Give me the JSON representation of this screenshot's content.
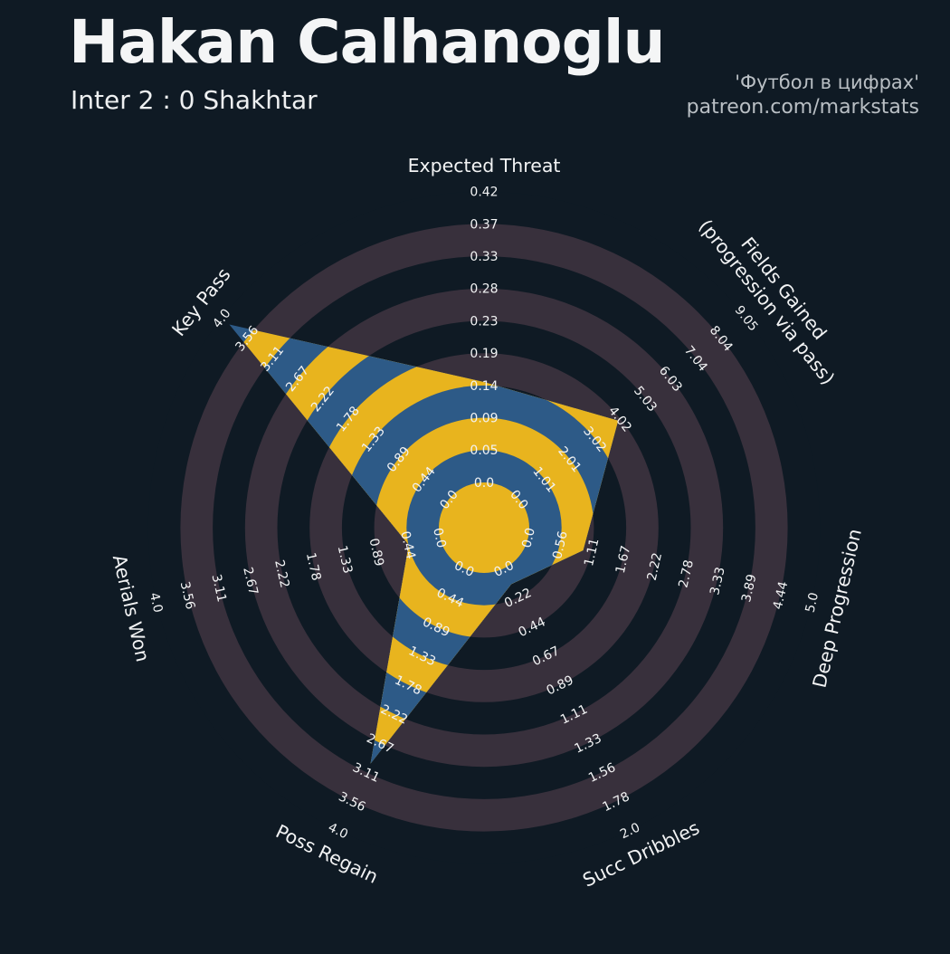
{
  "header": {
    "title": "Hakan Calhanoglu",
    "subtitle": "Inter 2 : 0 Shakhtar",
    "credit_line1": "'Футбол в цифрах'",
    "credit_line2": "patreon.com/markstats"
  },
  "colors": {
    "background": "#0f1a24",
    "ring_navy": "#0f1a24",
    "ring_mauve": "#38303c",
    "radar_blue": "#2d5a87",
    "radar_gold": "#e8b41e",
    "text_white": "#f2f3f4",
    "text_gray": "#b9bfc4"
  },
  "chart_data": {
    "type": "radar",
    "title": "Hakan Calhanoglu",
    "subtitle": "Inter 2 : 0 Shakhtar",
    "num_rings": 9,
    "legend_position": "none",
    "grid": "concentric-rings",
    "axes": [
      {
        "label": "Expected Threat",
        "label2": "",
        "min": 0,
        "max": 0.42,
        "value": 0.145,
        "ticks": [
          "0.0",
          "0.05",
          "0.09",
          "0.14",
          "0.19",
          "0.23",
          "0.28",
          "0.33",
          "0.37",
          "0.42"
        ]
      },
      {
        "label": "Fields Gained",
        "label2": "(progression via pass)",
        "min": 0,
        "max": 9.05,
        "value": 3.93,
        "ticks": [
          "0.0",
          "1.01",
          "2.01",
          "3.02",
          "4.02",
          "5.03",
          "6.03",
          "7.04",
          "8.04",
          "9.05"
        ]
      },
      {
        "label": "Deep Progression",
        "label2": "",
        "min": 0,
        "max": 5.0,
        "value": 0.97,
        "ticks": [
          "0.0",
          "0.56",
          "1.11",
          "1.67",
          "2.22",
          "2.78",
          "3.33",
          "3.89",
          "4.44",
          "5.0"
        ]
      },
      {
        "label": "Succ Dribbles",
        "label2": "",
        "min": 0,
        "max": 2.0,
        "value": 0.12,
        "ticks": [
          "0.0",
          "0.22",
          "0.44",
          "0.67",
          "0.89",
          "1.11",
          "1.33",
          "1.56",
          "1.78",
          "2.0"
        ]
      },
      {
        "label": "Poss Regain",
        "label2": "",
        "min": 0,
        "max": 4.0,
        "value": 2.98,
        "ticks": [
          "0.0",
          "0.44",
          "0.89",
          "1.33",
          "1.78",
          "2.22",
          "2.67",
          "3.11",
          "3.56",
          "4.0"
        ]
      },
      {
        "label": "Aerials Won",
        "label2": "",
        "min": 0,
        "max": 4.0,
        "value": 0.44,
        "ticks": [
          "0.0",
          "0.44",
          "0.89",
          "1.33",
          "1.78",
          "2.22",
          "2.67",
          "3.11",
          "3.56",
          "4.0"
        ]
      },
      {
        "label": "Key Pass",
        "label2": "",
        "min": 0,
        "max": 4.0,
        "value": 3.86,
        "ticks": [
          "0.0",
          "0.44",
          "0.89",
          "1.33",
          "1.78",
          "2.22",
          "2.67",
          "3.11",
          "3.56",
          "4.0"
        ]
      }
    ],
    "axis_angles_deg": [
      0,
      51.43,
      102.86,
      154.29,
      205.71,
      257.14,
      308.57
    ],
    "label_rotations_deg": [
      0,
      51.43,
      -77.14,
      -25.71,
      25.71,
      77.14,
      -51.43
    ]
  }
}
